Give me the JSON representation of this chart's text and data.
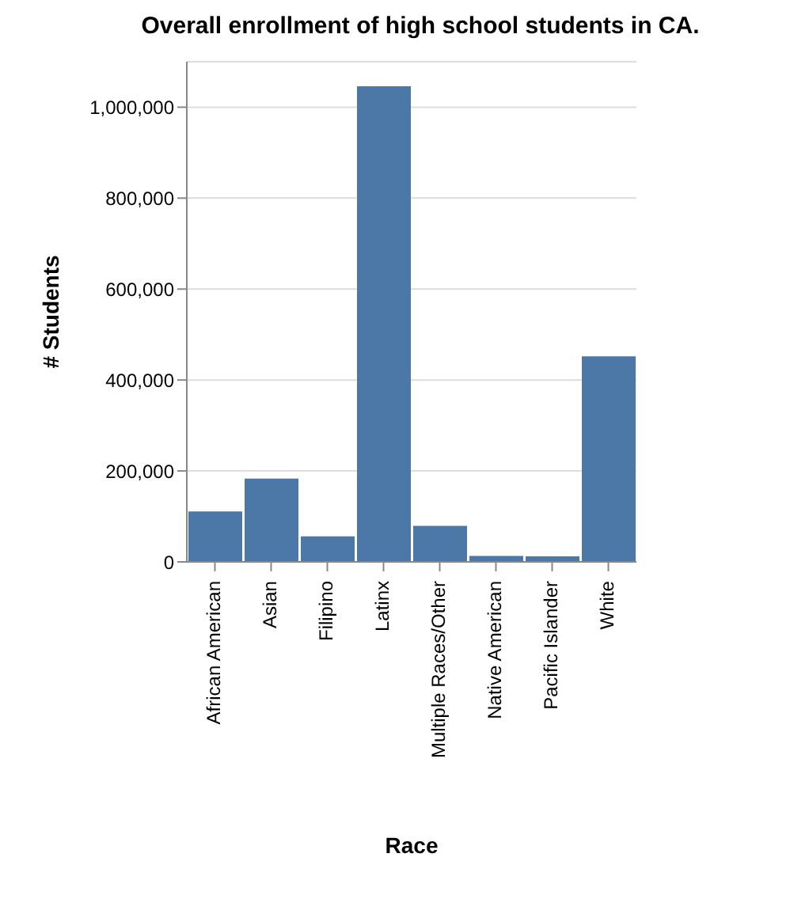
{
  "chart_data": {
    "type": "bar",
    "title": "Overall enrollment of high school students in CA.",
    "xlabel": "Race",
    "ylabel": "# Students",
    "categories": [
      "African American",
      "Asian",
      "Filipino",
      "Latinx",
      "Multiple Races/Other",
      "Native American",
      "Pacific Islander",
      "White"
    ],
    "values": [
      111000,
      183000,
      56000,
      1046000,
      79000,
      13000,
      12000,
      452000
    ],
    "color": "#4c78a8",
    "ylim": [
      0,
      1100000
    ],
    "yticks": [
      {
        "value": 0,
        "label": "0"
      },
      {
        "value": 200000,
        "label": "200,000"
      },
      {
        "value": 400000,
        "label": "400,000"
      },
      {
        "value": 600000,
        "label": "600,000"
      },
      {
        "value": 800000,
        "label": "800,000"
      },
      {
        "value": 1000000,
        "label": "1,000,000"
      }
    ],
    "grid": "y"
  }
}
